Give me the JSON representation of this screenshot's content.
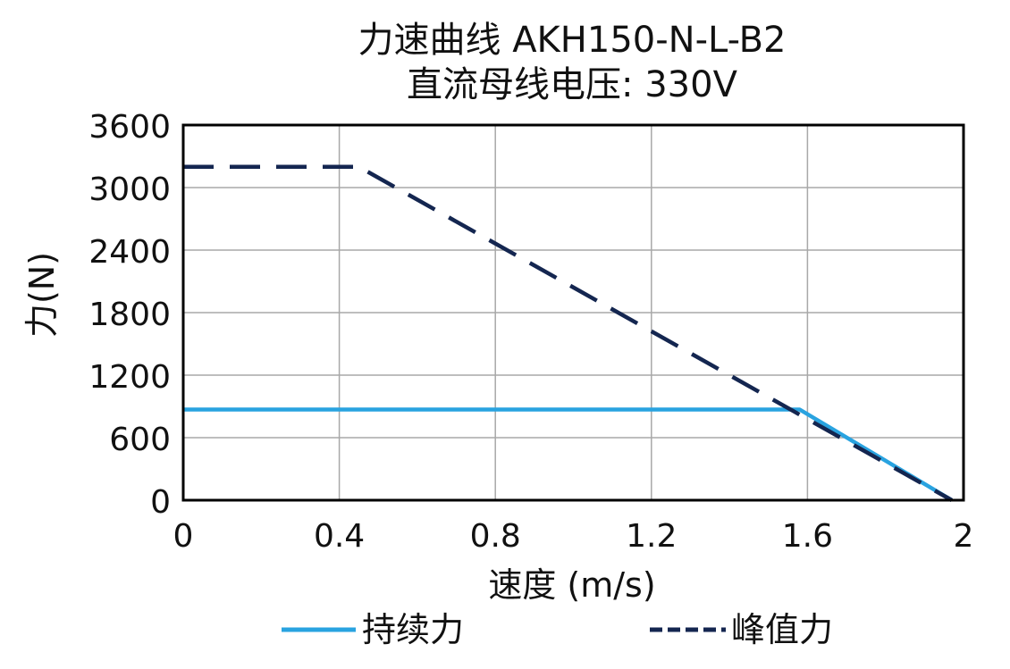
{
  "chart_data": {
    "type": "line",
    "title": "力速曲线 AKH150-N-L-B2",
    "subtitle": "直流母线电压: 330V",
    "xlabel": "速度 (m/s)",
    "ylabel": "力(N)",
    "xlim": [
      0,
      2
    ],
    "ylim": [
      0,
      3600
    ],
    "xticks": [
      "0",
      "0.4",
      "0.8",
      "1.2",
      "1.6",
      "2"
    ],
    "yticks": [
      "0",
      "600",
      "1200",
      "1800",
      "2400",
      "3000",
      "3600"
    ],
    "grid": true,
    "legend_position": "bottom",
    "series": [
      {
        "name": "持续力",
        "color": "#29a3e0",
        "line_style": "solid",
        "x": [
          0,
          1.58,
          1.97
        ],
        "y": [
          870,
          870,
          0
        ]
      },
      {
        "name": "峰值力",
        "color": "#142650",
        "line_style": "dashed",
        "x": [
          0,
          0.45,
          1.97
        ],
        "y": [
          3200,
          3200,
          0
        ]
      }
    ]
  }
}
